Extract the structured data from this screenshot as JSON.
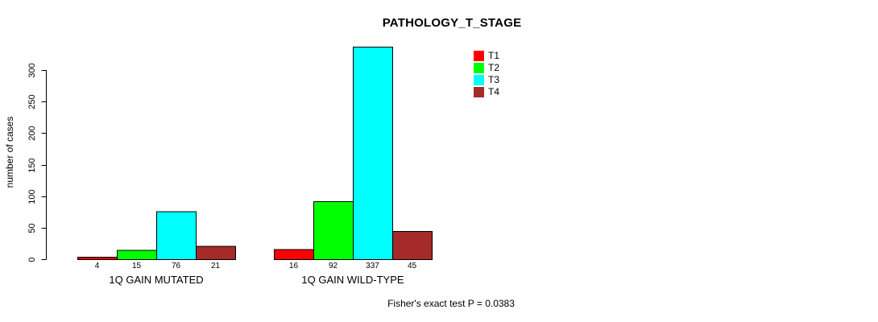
{
  "chart_data": {
    "type": "bar",
    "title": "PATHOLOGY_T_STAGE",
    "ylabel": "number of cases",
    "xlabel": "",
    "categories": [
      "1Q GAIN MUTATED",
      "1Q GAIN WILD-TYPE"
    ],
    "series": [
      {
        "name": "T1",
        "color": "#FF0000",
        "values": [
          4,
          16
        ]
      },
      {
        "name": "T2",
        "color": "#00FF00",
        "values": [
          15,
          92
        ]
      },
      {
        "name": "T3",
        "color": "#00FFFF",
        "values": [
          76,
          337
        ]
      },
      {
        "name": "T4",
        "color": "#A52A2A",
        "values": [
          21,
          45
        ]
      }
    ],
    "bar_value_labels": [
      [
        "4",
        "15",
        "76",
        "21"
      ],
      [
        "16",
        "92",
        "337",
        "45"
      ]
    ],
    "yticks": [
      0,
      50,
      100,
      150,
      200,
      250,
      300
    ],
    "ylim": [
      0,
      340
    ],
    "grid": false,
    "legend_position": "top-right",
    "annotation": "Fisher's exact test P = 0.0383"
  }
}
